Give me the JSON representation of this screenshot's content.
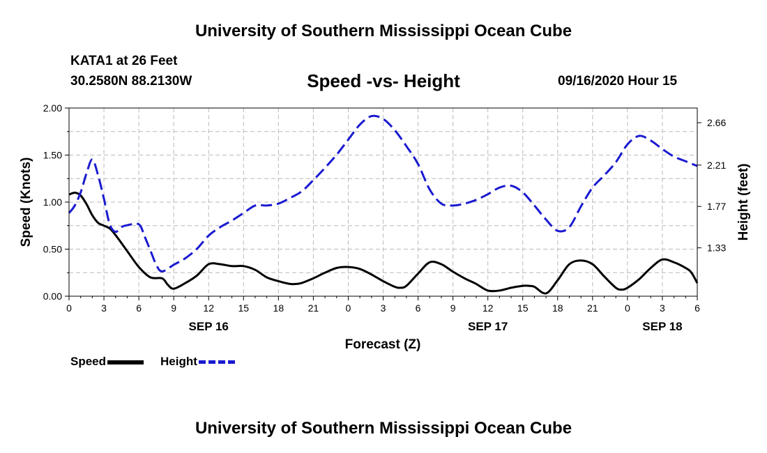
{
  "header": {
    "top_title": "University of Southern Mississippi Ocean Cube",
    "bottom_title": "University of Southern Mississippi Ocean Cube",
    "station": "KATA1 at 26 Feet",
    "coordinates": "30.2580N 88.2130W",
    "datetime": "09/16/2020 Hour 15"
  },
  "chart_data": {
    "type": "line",
    "title": "Speed -vs- Height",
    "xlabel": "Forecast (Z)",
    "ylabel_left": "Speed (Knots)",
    "ylabel_right": "Height (feet)",
    "x_range": [
      0,
      54
    ],
    "ylim_left": [
      0,
      2
    ],
    "ylim_right": [
      0.816,
      2.816
    ],
    "x_ticks": [
      0,
      3,
      6,
      9,
      12,
      15,
      18,
      21,
      24,
      27,
      30,
      33,
      36,
      39,
      42,
      45,
      48,
      51,
      54
    ],
    "x_tick_labels": [
      "0",
      "3",
      "6",
      "9",
      "12",
      "15",
      "18",
      "21",
      "0",
      "3",
      "6",
      "9",
      "12",
      "15",
      "18",
      "21",
      "0",
      "3",
      "6"
    ],
    "date_labels": [
      {
        "x": 12,
        "label": "SEP 16"
      },
      {
        "x": 36,
        "label": "SEP 17"
      },
      {
        "x": 51,
        "label": "SEP 18"
      }
    ],
    "y_ticks_left": [
      0,
      0.5,
      1,
      1.5,
      2
    ],
    "y_tick_labels_left": [
      "0.00",
      "0.50",
      "1.00",
      "1.50",
      "2.00"
    ],
    "y_ticks_right": [
      1.33,
      1.77,
      2.21,
      2.66
    ],
    "y_tick_labels_right": [
      "1.33",
      "1.77",
      "2.21",
      "2.66"
    ],
    "grid": true,
    "series": [
      {
        "name": "Speed",
        "axis": "left",
        "color": "#000000",
        "style": "solid",
        "x": [
          0,
          0.5,
          1,
          1.5,
          2,
          2.5,
          3,
          3.5,
          4,
          5,
          6,
          7,
          8,
          8.5,
          9,
          10,
          11,
          12,
          13,
          14,
          15,
          16,
          17,
          18,
          19,
          19.5,
          20,
          21,
          22,
          23,
          24,
          25,
          26,
          27,
          28,
          28.5,
          29,
          30,
          31,
          32,
          33,
          34,
          35,
          36,
          37,
          38,
          39,
          39.5,
          40,
          41,
          42,
          43,
          44,
          45,
          46,
          47,
          47.5,
          48,
          49,
          50,
          51,
          52,
          53,
          53.5,
          54
        ],
        "y": [
          1.08,
          1.1,
          1.07,
          0.98,
          0.86,
          0.78,
          0.75,
          0.72,
          0.65,
          0.48,
          0.31,
          0.2,
          0.19,
          0.12,
          0.08,
          0.14,
          0.22,
          0.34,
          0.34,
          0.32,
          0.32,
          0.28,
          0.2,
          0.16,
          0.13,
          0.13,
          0.14,
          0.19,
          0.25,
          0.3,
          0.31,
          0.29,
          0.23,
          0.16,
          0.1,
          0.09,
          0.11,
          0.24,
          0.36,
          0.34,
          0.26,
          0.19,
          0.13,
          0.06,
          0.06,
          0.09,
          0.11,
          0.11,
          0.1,
          0.03,
          0.17,
          0.34,
          0.38,
          0.34,
          0.21,
          0.09,
          0.07,
          0.09,
          0.18,
          0.3,
          0.39,
          0.36,
          0.3,
          0.25,
          0.14
        ]
      },
      {
        "name": "Height",
        "axis": "right",
        "color": "#1a1ad0",
        "style": "dashed",
        "x": [
          0,
          0.5,
          1,
          1.5,
          2,
          2.5,
          3,
          3.5,
          4,
          4.5,
          5,
          6,
          6.5,
          7,
          7.5,
          8,
          9,
          10,
          11,
          12,
          13,
          14,
          15,
          16,
          17,
          18,
          19,
          20,
          21,
          22,
          23,
          24,
          25,
          26,
          27,
          28,
          29,
          30,
          31,
          32,
          33,
          34,
          35,
          36,
          37,
          38,
          39,
          40,
          41,
          42,
          43,
          44,
          45,
          46,
          47,
          48,
          49,
          50,
          51,
          52,
          53,
          54
        ],
        "y": [
          1.7,
          1.78,
          1.92,
          2.12,
          2.27,
          2.1,
          1.85,
          1.58,
          1.5,
          1.55,
          1.57,
          1.58,
          1.45,
          1.3,
          1.15,
          1.08,
          1.15,
          1.22,
          1.32,
          1.46,
          1.55,
          1.62,
          1.7,
          1.78,
          1.78,
          1.8,
          1.86,
          1.93,
          2.05,
          2.18,
          2.32,
          2.48,
          2.64,
          2.73,
          2.7,
          2.58,
          2.41,
          2.22,
          1.95,
          1.8,
          1.78,
          1.8,
          1.84,
          1.9,
          1.97,
          1.99,
          1.92,
          1.78,
          1.63,
          1.51,
          1.55,
          1.77,
          1.97,
          2.1,
          2.24,
          2.43,
          2.52,
          2.47,
          2.38,
          2.3,
          2.25,
          2.2
        ]
      }
    ]
  },
  "legend": {
    "speed_label": "Speed",
    "height_label": "Height"
  }
}
